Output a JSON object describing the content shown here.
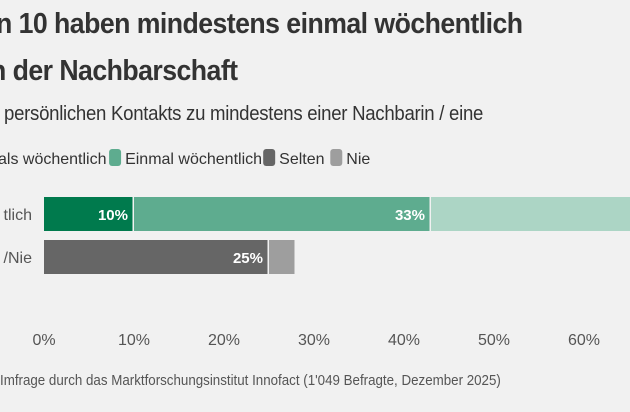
{
  "chart_data": {
    "type": "bar",
    "orientation": "horizontal",
    "stacked": true,
    "title_lines": [
      "n 10 haben mindestens einmal wöchentlich",
      "n der Nachbarschaft"
    ],
    "subtitle": "persönlichen Kontakts zu mindestens einer Nachbarin / eine",
    "legend": [
      {
        "label": "als wöchentlich",
        "color": "#007a4d"
      },
      {
        "label": "Einmal wöchentlich",
        "color": "#5eac8f"
      },
      {
        "label": "Selten",
        "color": "#666666"
      },
      {
        "label": "Nie",
        "color": "#9e9e9e"
      }
    ],
    "legend_placement": "top",
    "categories": [
      "tlich",
      "/Nie"
    ],
    "rows": [
      {
        "category": "tlich",
        "segments": [
          {
            "value": 10,
            "label": "10%",
            "color": "#007a4d"
          },
          {
            "value": 33,
            "label": "33%",
            "color": "#5eac8f"
          },
          {
            "value": 29,
            "label": "",
            "color": "#acd5c5"
          }
        ]
      },
      {
        "category": "/Nie",
        "segments": [
          {
            "value": 25,
            "label": "25%",
            "color": "#666666"
          },
          {
            "value": 3,
            "label": "",
            "color": "#9e9e9e"
          }
        ]
      }
    ],
    "xticks": [
      "0%",
      "10%",
      "20%",
      "30%",
      "40%",
      "50%",
      "60%"
    ],
    "xtick_values": [
      0,
      10,
      20,
      30,
      40,
      50,
      60
    ],
    "xlim": [
      0,
      65
    ],
    "grid": false,
    "source": "Imfrage durch das Marktforschungsinstitut Innofact (1'049 Befragte, Dezember 2025)"
  }
}
